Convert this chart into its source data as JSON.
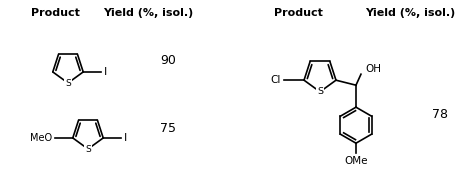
{
  "bg_color": "#ffffff",
  "header1": "Product",
  "header2": "Yield (%, isol.)",
  "header3": "Product",
  "header4": "Yield (%, isol.)",
  "yield1": "90",
  "yield2": "75",
  "yield3": "78",
  "header_fontsize": 8,
  "value_fontsize": 9,
  "text_color": "#000000",
  "fig_width": 4.74,
  "fig_height": 1.81,
  "dpi": 100
}
